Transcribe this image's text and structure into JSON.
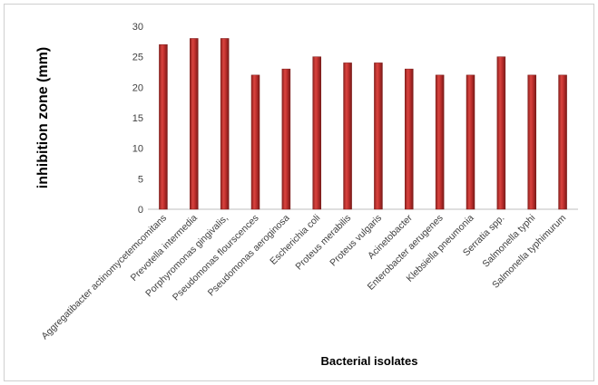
{
  "chart_data": {
    "type": "bar",
    "title": "",
    "xlabel": "Bacterial isolates",
    "ylabel": "inhibition zone (mm)",
    "ylim": [
      0,
      30
    ],
    "yticks": [
      0,
      5,
      10,
      15,
      20,
      25,
      30
    ],
    "grid": false,
    "legend": "none",
    "bar_color": "#c0302e",
    "bar_edge_color": "#7a1a18",
    "categories": [
      "Aggregatibacter actinomycetemcomitans",
      "Prevotella intermedia",
      "Porphyromonas gingivalis,",
      "Pseudomonas flourscences",
      "Pseudomonas aeroginosa",
      "Escherichia coli",
      "Proteus merabilis",
      "Proteus  vulgaris",
      "Acinetobacter",
      "Enterobacter aerugenes",
      "Klebsiella pneumonia",
      "Serratia spp.",
      "Salmonella typhi",
      "Salmonella typhimurum"
    ],
    "values": [
      27,
      28,
      28,
      22,
      23,
      25,
      24,
      24,
      23,
      22,
      22,
      25,
      22,
      22
    ]
  }
}
